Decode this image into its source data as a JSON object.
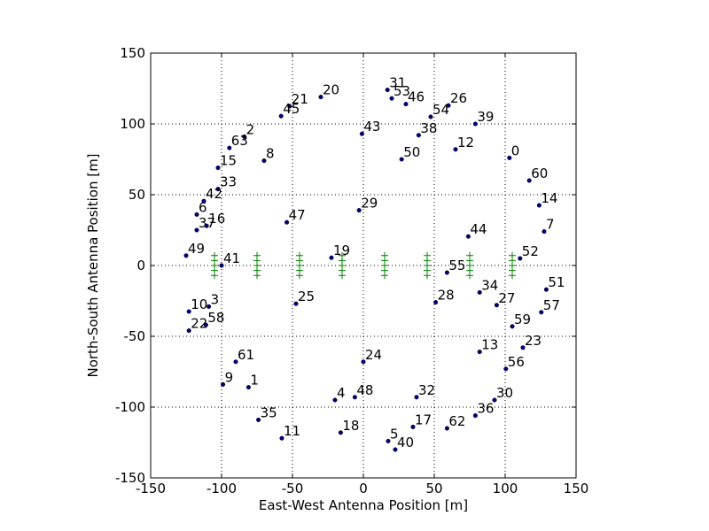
{
  "chart_data": {
    "type": "scatter",
    "xlabel": "East-West Antenna Position [m]",
    "ylabel": "North-South Antenna Position [m]",
    "xlim": [
      -150,
      150
    ],
    "ylim": [
      -150,
      150
    ],
    "xticks": [
      -150,
      -100,
      -50,
      0,
      50,
      100,
      150
    ],
    "yticks": [
      -150,
      -100,
      -50,
      0,
      50,
      100,
      150
    ],
    "grid": true,
    "series": [
      {
        "color": "#000080",
        "marker": "circle",
        "labels": [
          0,
          1,
          2,
          3,
          4,
          5,
          6,
          7,
          8,
          9,
          10,
          11,
          12,
          13,
          14,
          15,
          16,
          17,
          18,
          19,
          20,
          21,
          22,
          23,
          24,
          25,
          26,
          27,
          28,
          29,
          30,
          31,
          32,
          33,
          34,
          35,
          36,
          37,
          38,
          39,
          40,
          41,
          42,
          43,
          44,
          45,
          46,
          47,
          48,
          49,
          50,
          51,
          52,
          53,
          54,
          55,
          56,
          57,
          58,
          59,
          60,
          61,
          62,
          63
        ],
        "x": [
          103,
          -81,
          -84,
          -109,
          -20,
          17.5,
          -117.5,
          127.5,
          -70,
          -99,
          -123,
          -57.5,
          65,
          82,
          124,
          -102.5,
          -110.5,
          35,
          -16,
          -22.5,
          -30,
          -52,
          -123,
          112.5,
          0,
          -47.5,
          60,
          94,
          51,
          -3,
          92.5,
          17,
          37.5,
          -102.5,
          82,
          -74,
          79,
          -117.5,
          39,
          79,
          22.5,
          -100,
          -112.5,
          -1,
          74,
          -58,
          30,
          -54,
          -6,
          -125,
          27,
          129,
          110.5,
          20,
          47.5,
          59,
          100.5,
          125.5,
          -111,
          105,
          117,
          -90,
          59,
          -94.5
        ],
        "y": [
          76,
          -86,
          91,
          -29,
          -95,
          -124,
          36,
          24,
          74,
          -84,
          -32.5,
          -122,
          82,
          -61,
          42.5,
          69,
          28,
          -114,
          -118,
          5.5,
          119,
          112.5,
          -46,
          -58,
          -68,
          -27,
          113,
          -28,
          -26,
          39,
          -95,
          124,
          -93,
          54,
          -19,
          -109,
          -106,
          25,
          92,
          100,
          -130,
          0,
          45.5,
          93,
          20.5,
          105.5,
          114,
          30.5,
          -93,
          7,
          75,
          -17,
          5,
          118,
          105,
          -5,
          -73,
          -33,
          -42,
          -43,
          60,
          -68,
          -115,
          83
        ]
      },
      {
        "color": "#008000",
        "marker": "plus",
        "x": [
          -105,
          -105,
          -105,
          -105,
          -105,
          -75,
          -75,
          -75,
          -75,
          -75,
          -45,
          -45,
          -45,
          -45,
          -45,
          -15,
          -15,
          -15,
          -15,
          -15,
          15,
          15,
          15,
          15,
          15,
          45,
          45,
          45,
          45,
          45,
          75,
          75,
          75,
          75,
          75,
          105,
          105,
          105,
          105,
          105
        ],
        "y": [
          7,
          3.5,
          0,
          -3.5,
          -7,
          7,
          3.5,
          0,
          -3.5,
          -7,
          7,
          3.5,
          0,
          -3.5,
          -7,
          7,
          3.5,
          0,
          -3.5,
          -7,
          7,
          3.5,
          0,
          -3.5,
          -7,
          7,
          3.5,
          0,
          -3.5,
          -7,
          7,
          3.5,
          0,
          -3.5,
          -7,
          7,
          3.5,
          0,
          -3.5,
          -7
        ]
      }
    ]
  }
}
